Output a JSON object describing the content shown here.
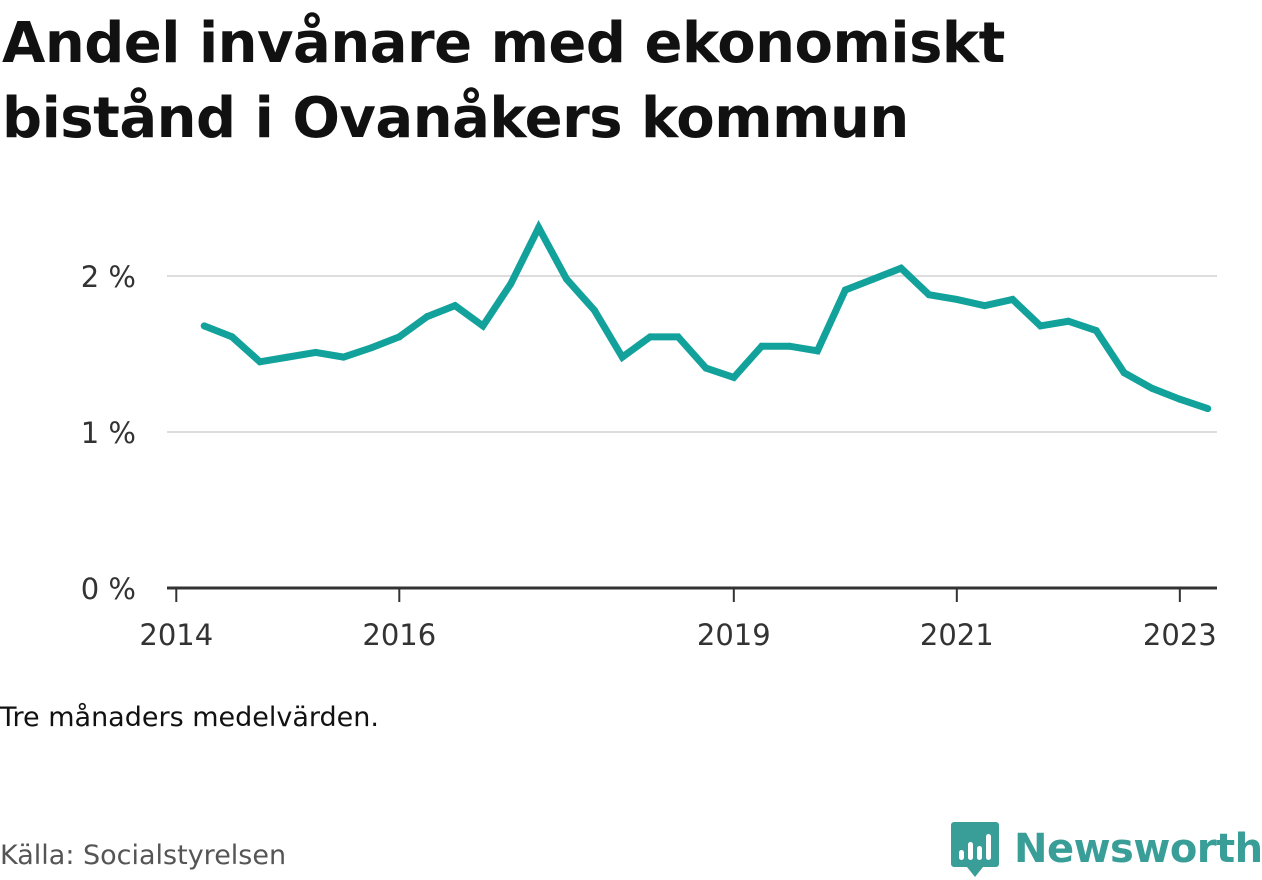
{
  "title": "Andel invånare med ekonomiskt bistånd i Ovanåkers kommun",
  "note": "Tre månaders medelvärden.",
  "source": "Källa: Socialstyrelsen",
  "brand": "Newsworthy",
  "colors": {
    "line": "#12a29b",
    "grid": "#dddddd",
    "axis": "#333333",
    "brand": "#3a9e98"
  },
  "chart_data": {
    "type": "line",
    "title": "Andel invånare med ekonomiskt bistånd i Ovanåkers kommun",
    "xlabel": "",
    "ylabel": "",
    "ylim": [
      0,
      2.5
    ],
    "xlim": [
      "2013-12",
      "2023-05"
    ],
    "yticks": [
      {
        "value": 0,
        "label": "0 %"
      },
      {
        "value": 1,
        "label": "1 %"
      },
      {
        "value": 2,
        "label": "2 %"
      }
    ],
    "xticks": [
      {
        "value": "2014-01",
        "label": "2014"
      },
      {
        "value": "2016-01",
        "label": "2016"
      },
      {
        "value": "2019-01",
        "label": "2019"
      },
      {
        "value": "2021-01",
        "label": "2021"
      },
      {
        "value": "2023-01",
        "label": "2023"
      }
    ],
    "grid": true,
    "legend": "none",
    "series": [
      {
        "x": [
          "2014-04",
          "2014-07",
          "2014-10",
          "2015-01",
          "2015-04",
          "2015-07",
          "2015-10",
          "2016-01",
          "2016-04",
          "2016-07",
          "2016-10",
          "2017-01",
          "2017-04",
          "2017-07",
          "2017-10",
          "2018-01",
          "2018-04",
          "2018-07",
          "2018-10",
          "2019-01",
          "2019-04",
          "2019-07",
          "2019-10",
          "2020-01",
          "2020-04",
          "2020-07",
          "2020-10",
          "2021-01",
          "2021-04",
          "2021-07",
          "2021-10",
          "2022-01",
          "2022-04",
          "2022-07",
          "2022-10",
          "2023-01",
          "2023-04"
        ],
        "values": [
          1.68,
          1.61,
          1.45,
          1.48,
          1.51,
          1.48,
          1.54,
          1.61,
          1.74,
          1.81,
          1.68,
          1.95,
          2.31,
          1.98,
          1.78,
          1.48,
          1.61,
          1.61,
          1.41,
          1.35,
          1.55,
          1.55,
          1.52,
          1.91,
          1.98,
          2.05,
          1.88,
          1.85,
          1.81,
          1.85,
          1.68,
          1.71,
          1.65,
          1.38,
          1.28,
          1.21,
          1.15
        ]
      }
    ]
  }
}
